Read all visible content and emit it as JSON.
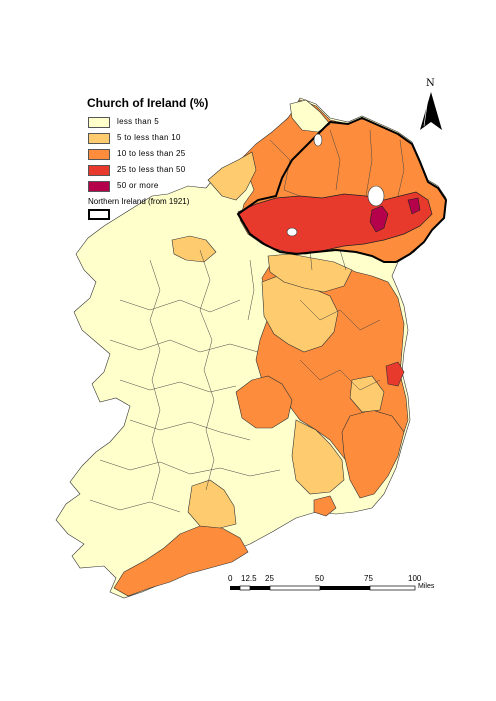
{
  "legend": {
    "title": "Church of Ireland (%)",
    "items": [
      {
        "label": "less than 5",
        "color": "#ffffcc"
      },
      {
        "label": "5 to less than 10",
        "color": "#fecb6e"
      },
      {
        "label": "10 to less than 25",
        "color": "#fd8d3c"
      },
      {
        "label": "25 to less than 50",
        "color": "#e8392d"
      },
      {
        "label": "50 or more",
        "color": "#b5004b"
      }
    ],
    "boundary_label": "Northern Ireland (from 1921)"
  },
  "north_arrow": {
    "label": "N"
  },
  "scale_bar": {
    "ticks": [
      "0",
      "12.5",
      "25",
      "50",
      "75",
      "100"
    ],
    "unit": "Miles"
  }
}
